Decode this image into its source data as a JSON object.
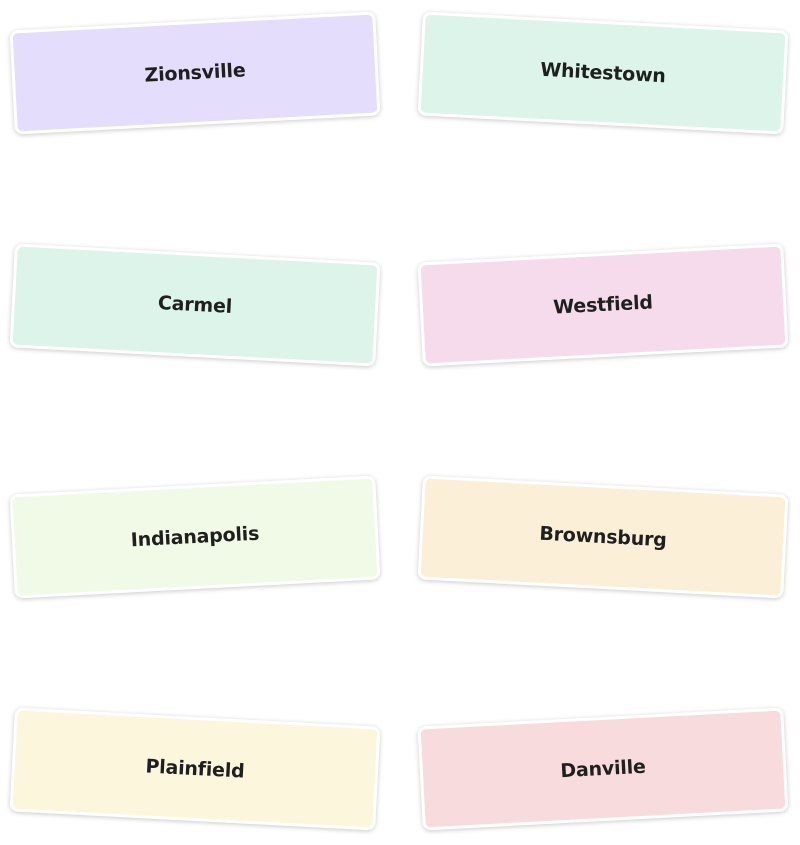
{
  "cards": [
    {
      "label": "Zionsville",
      "color": "#e4ddfb"
    },
    {
      "label": "Whitestown",
      "color": "#dcf4ea"
    },
    {
      "label": "Carmel",
      "color": "#dcf4ea"
    },
    {
      "label": "Westfield",
      "color": "#f5dbeb"
    },
    {
      "label": "Indianapolis",
      "color": "#f0fae6"
    },
    {
      "label": "Brownsburg",
      "color": "#fbefd8"
    },
    {
      "label": "Plainfield",
      "color": "#fbf6dc"
    },
    {
      "label": "Danville",
      "color": "#f8dcdd"
    }
  ]
}
